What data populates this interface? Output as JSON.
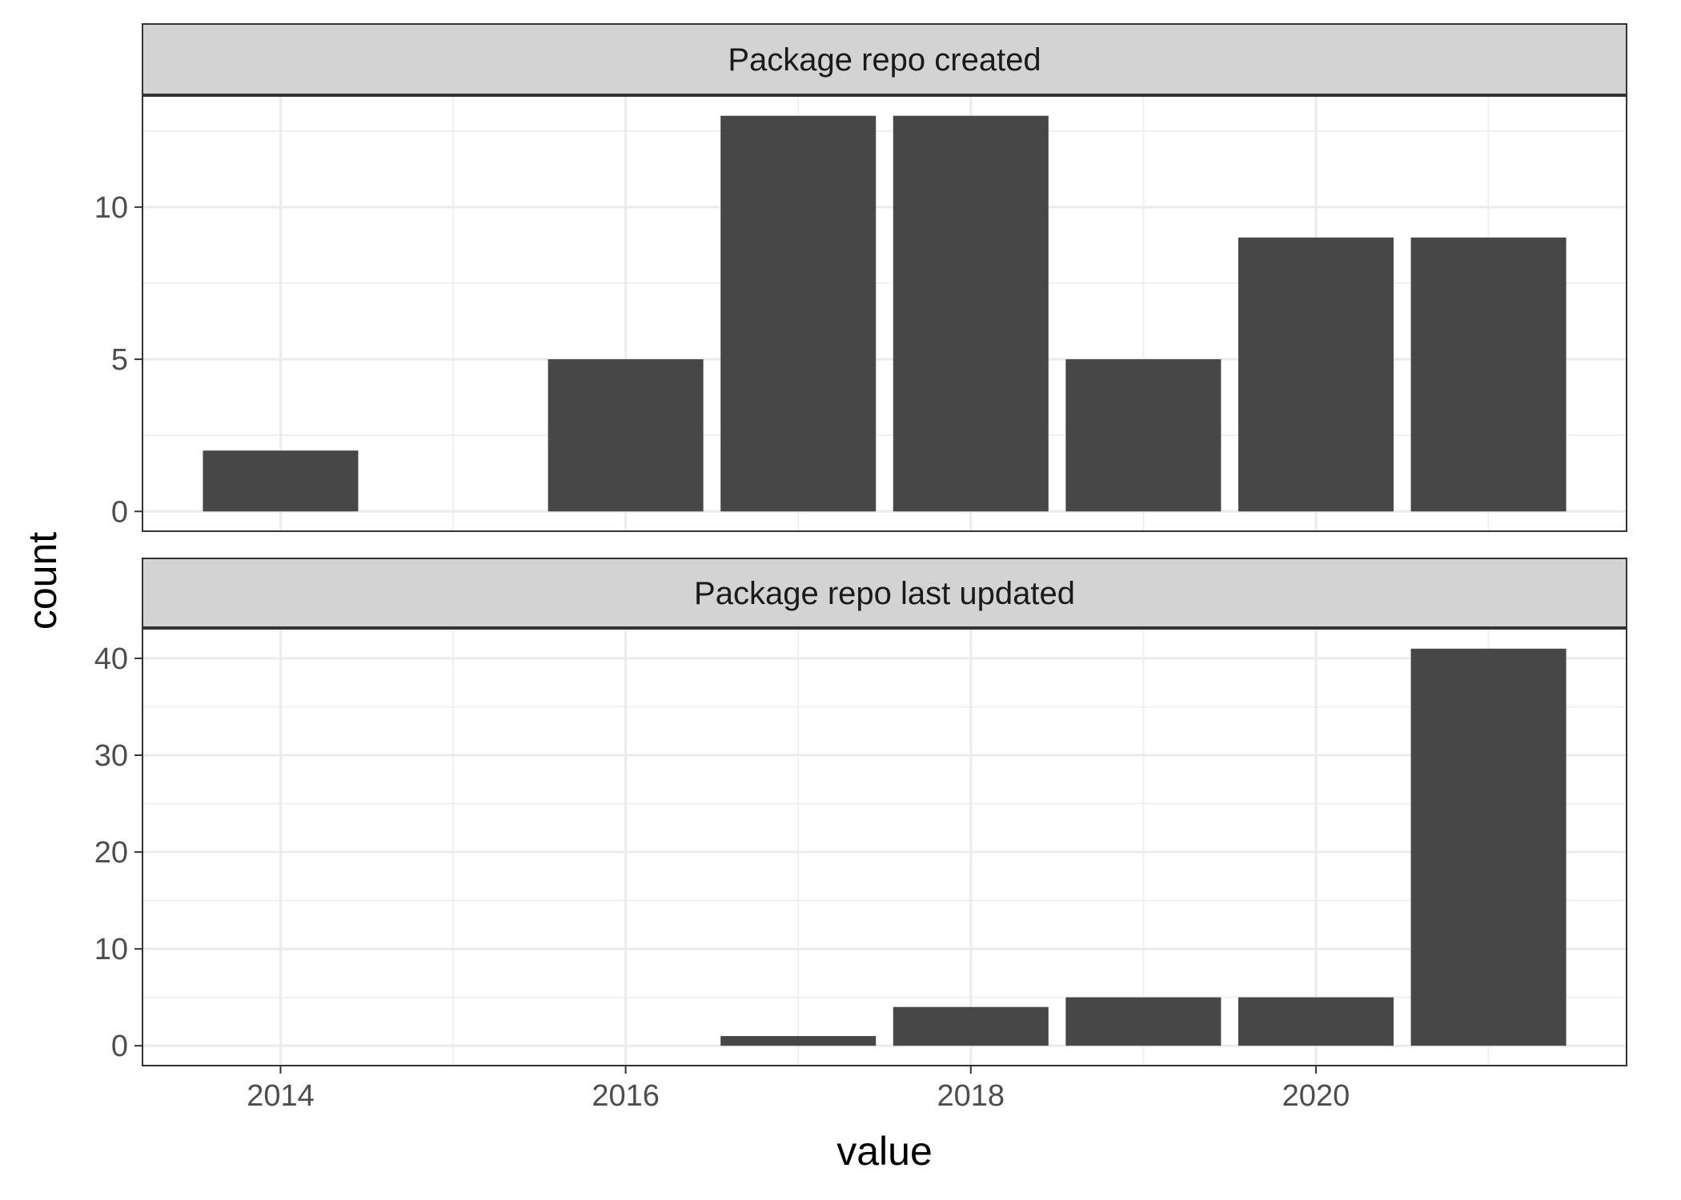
{
  "chart_data": {
    "type": "bar",
    "xlabel": "value",
    "ylabel": "count",
    "x_ticks": [
      2014,
      2016,
      2018,
      2020
    ],
    "xlim": [
      2013.2,
      2021.8
    ],
    "grid": true,
    "colors": {
      "bar": "#474747",
      "strip": "#d3d3d3",
      "grid": "#ebebeb",
      "panel_border": "#333333"
    },
    "panels": [
      {
        "title": "Package repo created",
        "x": [
          2014,
          2016,
          2017,
          2018,
          2019,
          2020,
          2021
        ],
        "values": [
          2,
          5,
          13,
          13,
          5,
          9,
          9
        ],
        "ylim": [
          -0.65,
          13.65
        ],
        "y_ticks": [
          0,
          5,
          10
        ]
      },
      {
        "title": "Package repo last updated",
        "x": [
          2017,
          2018,
          2019,
          2020,
          2021
        ],
        "values": [
          1,
          4,
          5,
          5,
          41
        ],
        "ylim": [
          -2.05,
          43.05
        ],
        "y_ticks": [
          0,
          10,
          20,
          30,
          40
        ]
      }
    ]
  }
}
